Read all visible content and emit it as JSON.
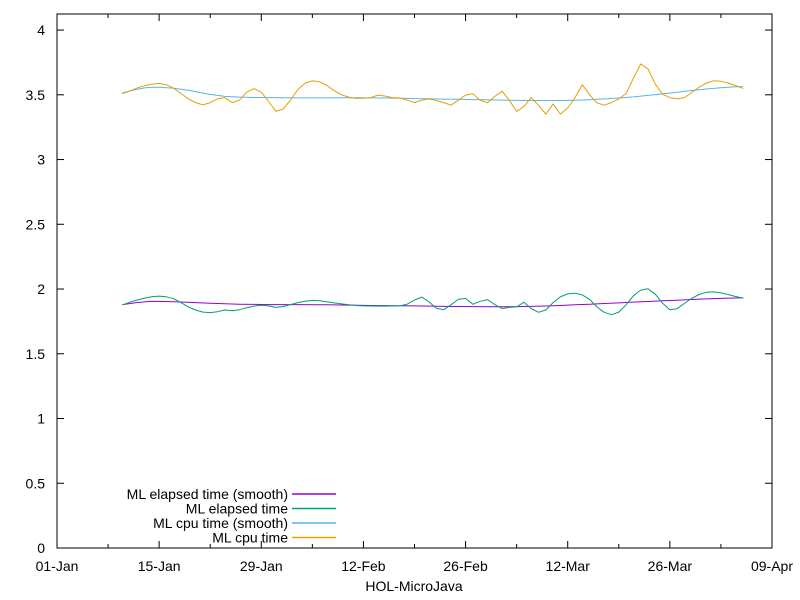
{
  "chart_data": {
    "type": "line",
    "title": "",
    "xlabel": "HOL-MicroJava",
    "ylabel": "",
    "x_unit": "days-since-01-Jan",
    "xlim": [
      0,
      98
    ],
    "ylim": [
      0,
      4.124
    ],
    "grid": false,
    "background_color": "#ffffff",
    "axis_color": "#000000",
    "legend_position": "inside-bottom-left",
    "x_major_ticks": [
      {
        "day": 0,
        "label": "01-Jan"
      },
      {
        "day": 14,
        "label": "15-Jan"
      },
      {
        "day": 28,
        "label": "29-Jan"
      },
      {
        "day": 42,
        "label": "12-Feb"
      },
      {
        "day": 56,
        "label": "26-Feb"
      },
      {
        "day": 70,
        "label": "12-Mar"
      },
      {
        "day": 84,
        "label": "26-Mar"
      },
      {
        "day": 98,
        "label": "09-Apr"
      }
    ],
    "x_minor_tick_days": [
      7,
      21,
      35,
      49,
      63,
      77,
      91
    ],
    "y_ticks": [
      {
        "v": 0,
        "label": "0"
      },
      {
        "v": 0.5,
        "label": "0.5"
      },
      {
        "v": 1,
        "label": "1"
      },
      {
        "v": 1.5,
        "label": "1.5"
      },
      {
        "v": 2,
        "label": "2"
      },
      {
        "v": 2.5,
        "label": "2.5"
      },
      {
        "v": 3,
        "label": "3"
      },
      {
        "v": 3.5,
        "label": "3.5"
      },
      {
        "v": 4,
        "label": "4"
      }
    ],
    "series": [
      {
        "name": "ML elapsed time (smooth)",
        "color": "#9400d3",
        "points": [
          [
            9,
            1.88
          ],
          [
            11,
            1.896
          ],
          [
            13,
            1.905
          ],
          [
            15,
            1.904
          ],
          [
            17,
            1.9
          ],
          [
            19,
            1.895
          ],
          [
            21,
            1.89
          ],
          [
            23,
            1.886
          ],
          [
            25,
            1.883
          ],
          [
            27,
            1.881
          ],
          [
            29,
            1.88
          ],
          [
            31,
            1.88
          ],
          [
            33,
            1.88
          ],
          [
            35,
            1.879
          ],
          [
            37,
            1.878
          ],
          [
            39,
            1.877
          ],
          [
            41,
            1.875
          ],
          [
            43,
            1.873
          ],
          [
            45,
            1.872
          ],
          [
            47,
            1.871
          ],
          [
            49,
            1.87
          ],
          [
            51,
            1.868
          ],
          [
            53,
            1.866
          ],
          [
            55,
            1.865
          ],
          [
            57,
            1.864
          ],
          [
            59,
            1.863
          ],
          [
            61,
            1.863
          ],
          [
            63,
            1.864
          ],
          [
            65,
            1.866
          ],
          [
            67,
            1.869
          ],
          [
            69,
            1.873
          ],
          [
            71,
            1.878
          ],
          [
            73,
            1.883
          ],
          [
            75,
            1.888
          ],
          [
            77,
            1.893
          ],
          [
            79,
            1.899
          ],
          [
            81,
            1.904
          ],
          [
            83,
            1.909
          ],
          [
            85,
            1.914
          ],
          [
            87,
            1.919
          ],
          [
            89,
            1.924
          ],
          [
            91,
            1.928
          ],
          [
            93,
            1.931
          ],
          [
            94,
            1.932
          ]
        ]
      },
      {
        "name": "ML elapsed time",
        "color": "#009e73",
        "points": [
          [
            9,
            1.878
          ],
          [
            10,
            1.898
          ],
          [
            11,
            1.915
          ],
          [
            12,
            1.93
          ],
          [
            13,
            1.94
          ],
          [
            14,
            1.945
          ],
          [
            15,
            1.94
          ],
          [
            16,
            1.925
          ],
          [
            17,
            1.895
          ],
          [
            18,
            1.862
          ],
          [
            19,
            1.838
          ],
          [
            20,
            1.822
          ],
          [
            21,
            1.818
          ],
          [
            22,
            1.825
          ],
          [
            23,
            1.838
          ],
          [
            24,
            1.832
          ],
          [
            25,
            1.84
          ],
          [
            26,
            1.856
          ],
          [
            27,
            1.868
          ],
          [
            28,
            1.875
          ],
          [
            29,
            1.87
          ],
          [
            30,
            1.858
          ],
          [
            31,
            1.865
          ],
          [
            32,
            1.88
          ],
          [
            33,
            1.895
          ],
          [
            34,
            1.905
          ],
          [
            35,
            1.912
          ],
          [
            36,
            1.91
          ],
          [
            37,
            1.902
          ],
          [
            38,
            1.893
          ],
          [
            39,
            1.885
          ],
          [
            40,
            1.878
          ],
          [
            41,
            1.873
          ],
          [
            42,
            1.87
          ],
          [
            43,
            1.869
          ],
          [
            44,
            1.868
          ],
          [
            45,
            1.868
          ],
          [
            46,
            1.869
          ],
          [
            47,
            1.87
          ],
          [
            48,
            1.883
          ],
          [
            49,
            1.915
          ],
          [
            50,
            1.938
          ],
          [
            51,
            1.9
          ],
          [
            52,
            1.852
          ],
          [
            53,
            1.84
          ],
          [
            54,
            1.878
          ],
          [
            55,
            1.92
          ],
          [
            56,
            1.928
          ],
          [
            57,
            1.882
          ],
          [
            58,
            1.905
          ],
          [
            59,
            1.918
          ],
          [
            60,
            1.88
          ],
          [
            61,
            1.85
          ],
          [
            62,
            1.858
          ],
          [
            63,
            1.862
          ],
          [
            64,
            1.898
          ],
          [
            65,
            1.85
          ],
          [
            66,
            1.82
          ],
          [
            67,
            1.838
          ],
          [
            68,
            1.895
          ],
          [
            69,
            1.94
          ],
          [
            70,
            1.962
          ],
          [
            71,
            1.968
          ],
          [
            72,
            1.955
          ],
          [
            73,
            1.92
          ],
          [
            74,
            1.862
          ],
          [
            75,
            1.82
          ],
          [
            76,
            1.802
          ],
          [
            77,
            1.822
          ],
          [
            78,
            1.878
          ],
          [
            79,
            1.948
          ],
          [
            80,
            1.992
          ],
          [
            81,
            2.002
          ],
          [
            82,
            1.96
          ],
          [
            83,
            1.89
          ],
          [
            84,
            1.84
          ],
          [
            85,
            1.848
          ],
          [
            86,
            1.888
          ],
          [
            87,
            1.928
          ],
          [
            88,
            1.958
          ],
          [
            89,
            1.975
          ],
          [
            90,
            1.978
          ],
          [
            91,
            1.97
          ],
          [
            92,
            1.958
          ],
          [
            93,
            1.942
          ],
          [
            94,
            1.93
          ]
        ]
      },
      {
        "name": "ML cpu time (smooth)",
        "color": "#56b4e9",
        "points": [
          [
            9,
            3.515
          ],
          [
            10,
            3.53
          ],
          [
            11,
            3.543
          ],
          [
            12,
            3.553
          ],
          [
            13,
            3.558
          ],
          [
            14,
            3.558
          ],
          [
            15,
            3.555
          ],
          [
            16,
            3.55
          ],
          [
            17,
            3.543
          ],
          [
            18,
            3.535
          ],
          [
            19,
            3.525
          ],
          [
            20,
            3.513
          ],
          [
            21,
            3.503
          ],
          [
            22,
            3.495
          ],
          [
            23,
            3.488
          ],
          [
            25,
            3.482
          ],
          [
            27,
            3.479
          ],
          [
            29,
            3.478
          ],
          [
            31,
            3.477
          ],
          [
            33,
            3.476
          ],
          [
            35,
            3.476
          ],
          [
            37,
            3.476
          ],
          [
            39,
            3.477
          ],
          [
            41,
            3.477
          ],
          [
            43,
            3.476
          ],
          [
            45,
            3.475
          ],
          [
            47,
            3.473
          ],
          [
            49,
            3.471
          ],
          [
            51,
            3.469
          ],
          [
            53,
            3.467
          ],
          [
            55,
            3.465
          ],
          [
            57,
            3.463
          ],
          [
            59,
            3.461
          ],
          [
            61,
            3.459
          ],
          [
            63,
            3.457
          ],
          [
            65,
            3.456
          ],
          [
            67,
            3.455
          ],
          [
            69,
            3.456
          ],
          [
            71,
            3.458
          ],
          [
            73,
            3.462
          ],
          [
            75,
            3.468
          ],
          [
            77,
            3.475
          ],
          [
            79,
            3.484
          ],
          [
            81,
            3.495
          ],
          [
            83,
            3.507
          ],
          [
            85,
            3.52
          ],
          [
            87,
            3.533
          ],
          [
            89,
            3.545
          ],
          [
            91,
            3.555
          ],
          [
            92,
            3.559
          ],
          [
            93,
            3.562
          ],
          [
            94,
            3.563
          ]
        ]
      },
      {
        "name": "ML cpu time",
        "color": "#e69f00",
        "points": [
          [
            9,
            3.51
          ],
          [
            10,
            3.53
          ],
          [
            11,
            3.553
          ],
          [
            12,
            3.57
          ],
          [
            13,
            3.582
          ],
          [
            14,
            3.588
          ],
          [
            15,
            3.578
          ],
          [
            16,
            3.55
          ],
          [
            17,
            3.51
          ],
          [
            18,
            3.468
          ],
          [
            19,
            3.44
          ],
          [
            20,
            3.422
          ],
          [
            21,
            3.44
          ],
          [
            22,
            3.468
          ],
          [
            23,
            3.478
          ],
          [
            24,
            3.44
          ],
          [
            25,
            3.458
          ],
          [
            26,
            3.52
          ],
          [
            27,
            3.548
          ],
          [
            28,
            3.52
          ],
          [
            29,
            3.448
          ],
          [
            30,
            3.372
          ],
          [
            31,
            3.39
          ],
          [
            32,
            3.46
          ],
          [
            33,
            3.54
          ],
          [
            34,
            3.59
          ],
          [
            35,
            3.608
          ],
          [
            36,
            3.6
          ],
          [
            37,
            3.572
          ],
          [
            38,
            3.532
          ],
          [
            39,
            3.5
          ],
          [
            40,
            3.482
          ],
          [
            41,
            3.472
          ],
          [
            42,
            3.473
          ],
          [
            43,
            3.478
          ],
          [
            44,
            3.498
          ],
          [
            45,
            3.49
          ],
          [
            46,
            3.478
          ],
          [
            47,
            3.475
          ],
          [
            48,
            3.458
          ],
          [
            49,
            3.44
          ],
          [
            50,
            3.458
          ],
          [
            51,
            3.468
          ],
          [
            52,
            3.455
          ],
          [
            53,
            3.44
          ],
          [
            54,
            3.42
          ],
          [
            55,
            3.458
          ],
          [
            56,
            3.498
          ],
          [
            57,
            3.508
          ],
          [
            58,
            3.458
          ],
          [
            59,
            3.438
          ],
          [
            60,
            3.488
          ],
          [
            61,
            3.528
          ],
          [
            62,
            3.458
          ],
          [
            63,
            3.372
          ],
          [
            64,
            3.41
          ],
          [
            65,
            3.478
          ],
          [
            66,
            3.42
          ],
          [
            67,
            3.35
          ],
          [
            68,
            3.43
          ],
          [
            69,
            3.352
          ],
          [
            70,
            3.398
          ],
          [
            71,
            3.478
          ],
          [
            72,
            3.578
          ],
          [
            73,
            3.5
          ],
          [
            74,
            3.438
          ],
          [
            75,
            3.42
          ],
          [
            76,
            3.44
          ],
          [
            77,
            3.468
          ],
          [
            78,
            3.51
          ],
          [
            79,
            3.628
          ],
          [
            80,
            3.738
          ],
          [
            81,
            3.7
          ],
          [
            82,
            3.582
          ],
          [
            83,
            3.505
          ],
          [
            84,
            3.478
          ],
          [
            85,
            3.468
          ],
          [
            86,
            3.478
          ],
          [
            87,
            3.518
          ],
          [
            88,
            3.558
          ],
          [
            89,
            3.59
          ],
          [
            90,
            3.608
          ],
          [
            91,
            3.604
          ],
          [
            92,
            3.59
          ],
          [
            93,
            3.572
          ],
          [
            94,
            3.55
          ]
        ]
      }
    ]
  }
}
